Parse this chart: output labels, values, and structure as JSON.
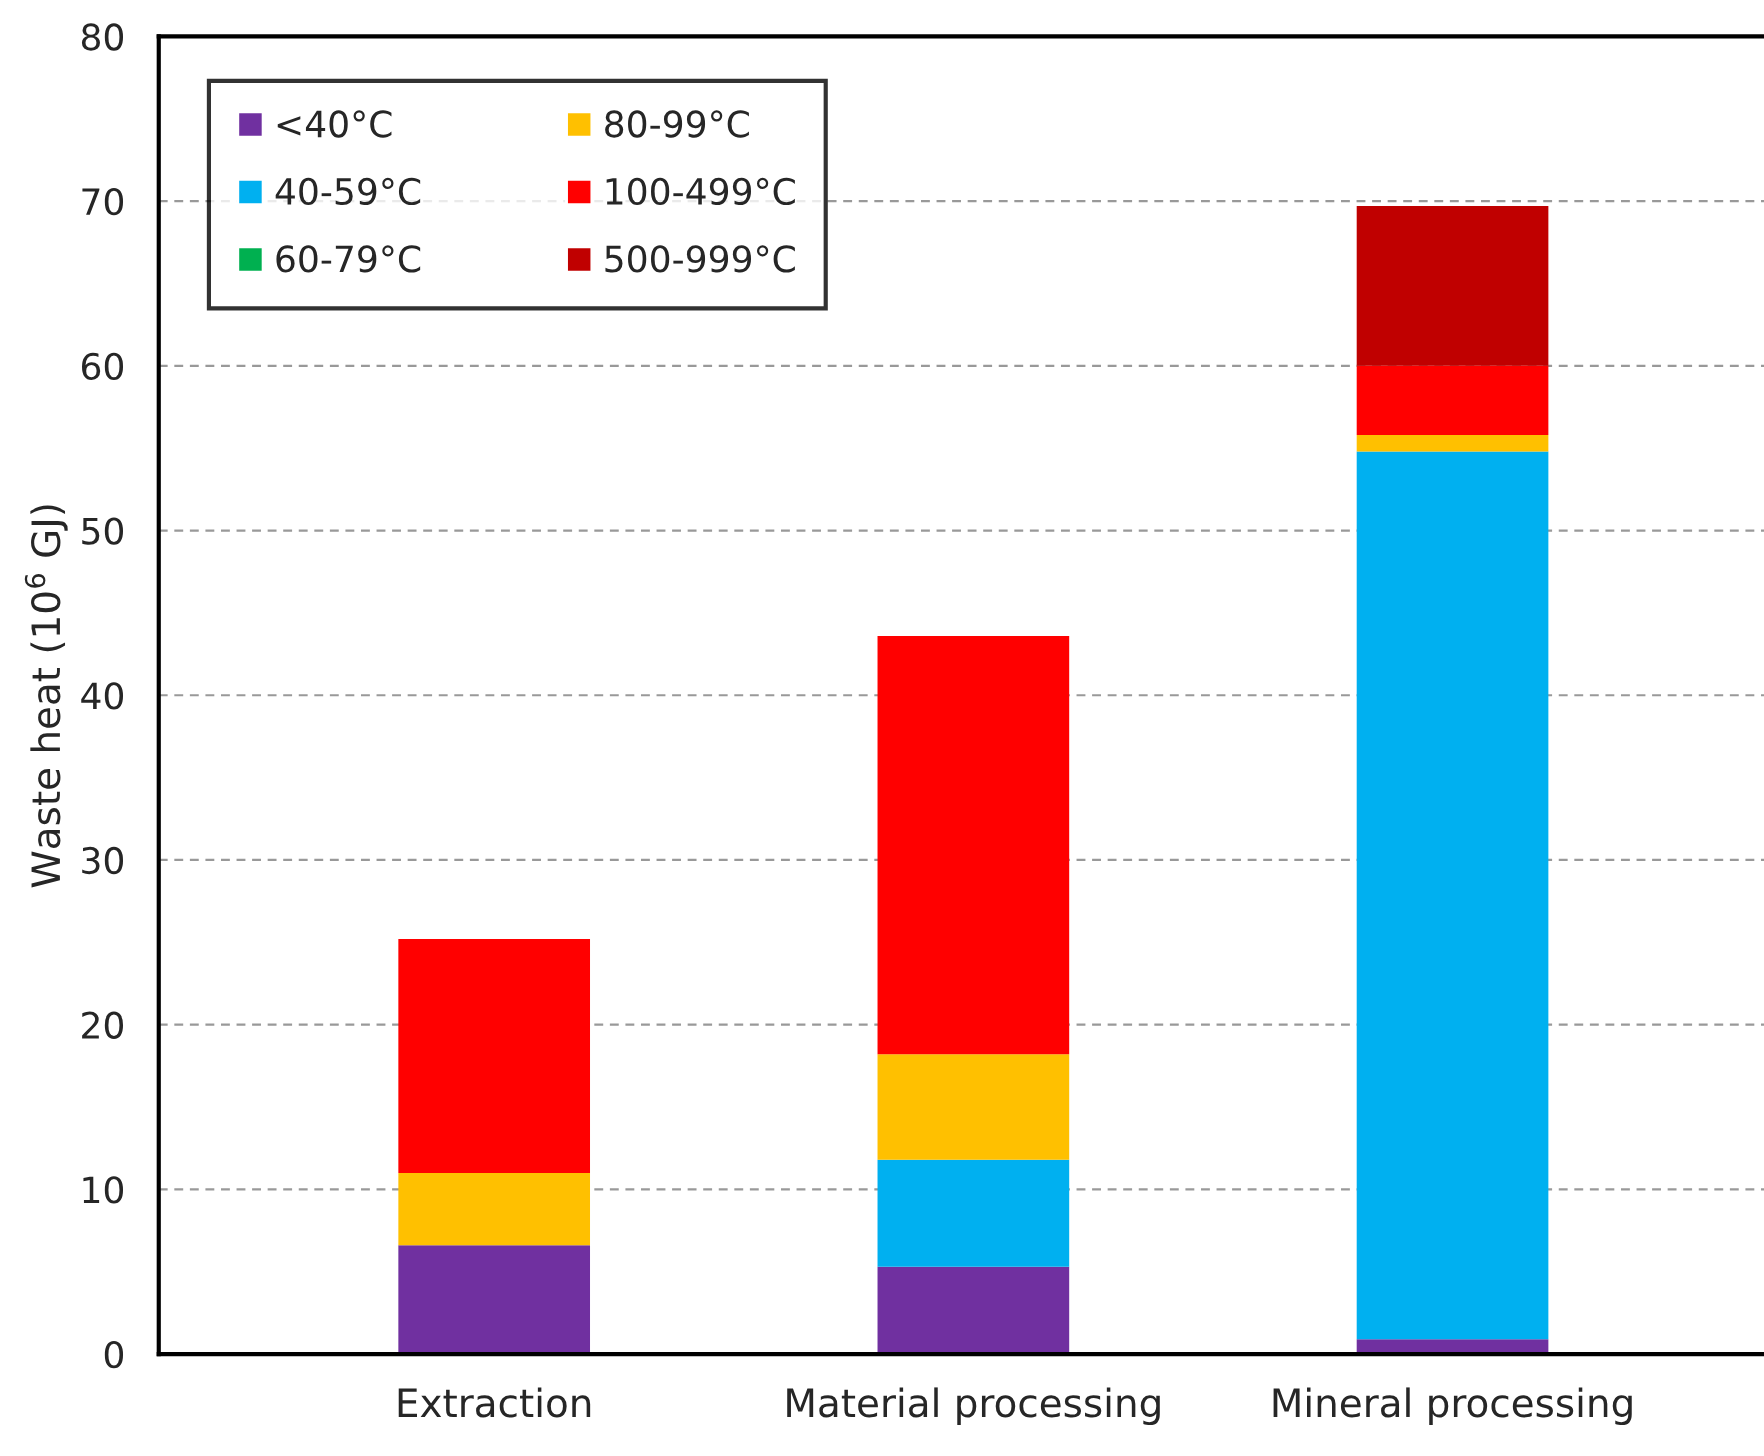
{
  "chart_data": {
    "type": "bar",
    "stacked": true,
    "ylabel": "Waste heat (10$^{6}$ GJ)",
    "categories": [
      "Extraction",
      "Material processing",
      "Mineral processing"
    ],
    "series": [
      {
        "name": "<40°C",
        "color": "#7030a0",
        "values": [
          6.6,
          5.3,
          0.9
        ]
      },
      {
        "name": "40-59°C",
        "color": "#00b0f0",
        "values": [
          0,
          6.5,
          53.9
        ]
      },
      {
        "name": "60-79°C",
        "color": "#00b050",
        "values": [
          0,
          0,
          0
        ]
      },
      {
        "name": "80-99°C",
        "color": "#ffc000",
        "values": [
          4.4,
          6.4,
          1.0
        ]
      },
      {
        "name": "100-499°C",
        "color": "#ff0000",
        "values": [
          14.2,
          25.4,
          4.2
        ]
      },
      {
        "name": "500-999°C",
        "color": "#c00000",
        "values": [
          0,
          0,
          9.7
        ]
      }
    ],
    "ylim": [
      0,
      80
    ],
    "yticks": [
      0,
      10,
      20,
      30,
      40,
      50,
      60,
      70,
      80
    ],
    "grid": "y",
    "legend": "top left"
  }
}
